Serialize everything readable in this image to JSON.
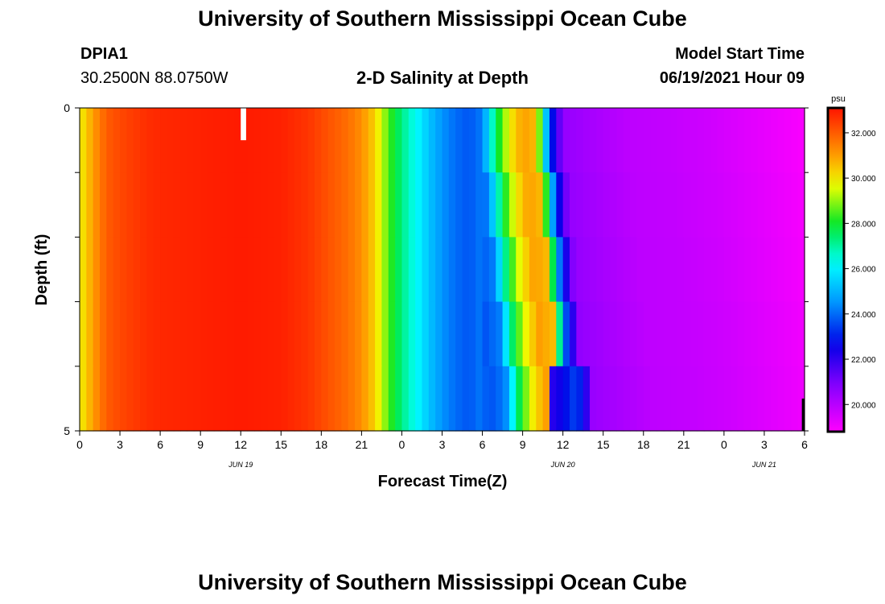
{
  "header": {
    "title": "University of Southern Mississippi Ocean Cube",
    "station_id": "DPIA1",
    "station_coords": "30.2500N  88.0750W",
    "chart_title": "2-D Salinity at Depth",
    "model_label": "Model Start Time",
    "model_time": "06/19/2021 Hour 09"
  },
  "footer": {
    "title": "University of Southern Mississippi Ocean Cube"
  },
  "chart_data": {
    "type": "heatmap",
    "title": "2-D Salinity at Depth",
    "xlabel": "Forecast Time(Z)",
    "ylabel": "Depth (ft)",
    "x_unit": "hours since 06/19 00Z",
    "xlim": [
      0,
      54
    ],
    "ylim": [
      0,
      5
    ],
    "x_ticks": [
      {
        "v": 0,
        "label": "0"
      },
      {
        "v": 3,
        "label": "3"
      },
      {
        "v": 6,
        "label": "6"
      },
      {
        "v": 9,
        "label": "9"
      },
      {
        "v": 12,
        "label": "12"
      },
      {
        "v": 15,
        "label": "15"
      },
      {
        "v": 18,
        "label": "18"
      },
      {
        "v": 21,
        "label": "21"
      },
      {
        "v": 24,
        "label": "0"
      },
      {
        "v": 27,
        "label": "3"
      },
      {
        "v": 30,
        "label": "6"
      },
      {
        "v": 33,
        "label": "9"
      },
      {
        "v": 36,
        "label": "12"
      },
      {
        "v": 39,
        "label": "15"
      },
      {
        "v": 42,
        "label": "18"
      },
      {
        "v": 45,
        "label": "21"
      },
      {
        "v": 48,
        "label": "0"
      },
      {
        "v": 51,
        "label": "3"
      },
      {
        "v": 54,
        "label": "6"
      }
    ],
    "date_labels": [
      {
        "v": 12,
        "label": "JUN 19"
      },
      {
        "v": 36,
        "label": "JUN 20"
      },
      {
        "v": 51,
        "label": "JUN 21"
      }
    ],
    "y_ticks": [
      {
        "v": 0,
        "label": "0"
      },
      {
        "v": 1,
        "label": ""
      },
      {
        "v": 2,
        "label": ""
      },
      {
        "v": 3,
        "label": ""
      },
      {
        "v": 4,
        "label": ""
      },
      {
        "v": 5,
        "label": "5"
      }
    ],
    "colorbar": {
      "unit": "psu",
      "min": 18.8,
      "max": 33.1,
      "ticks": [
        {
          "v": 32,
          "label": "32.000"
        },
        {
          "v": 30,
          "label": "30.000"
        },
        {
          "v": 28,
          "label": "28.000"
        },
        {
          "v": 26,
          "label": "26.000"
        },
        {
          "v": 24,
          "label": "24.000"
        },
        {
          "v": 22,
          "label": "22.000"
        },
        {
          "v": 20,
          "label": "20.000"
        }
      ]
    },
    "surface_profile": [
      {
        "t": 0,
        "s": 29.8
      },
      {
        "t": 1,
        "s": 31.0
      },
      {
        "t": 2,
        "s": 32.0
      },
      {
        "t": 3,
        "s": 32.3
      },
      {
        "t": 4,
        "s": 32.5
      },
      {
        "t": 5,
        "s": 32.7
      },
      {
        "t": 6,
        "s": 32.8
      },
      {
        "t": 9,
        "s": 32.9
      },
      {
        "t": 12,
        "s": 33.0
      },
      {
        "t": 15,
        "s": 32.9
      },
      {
        "t": 17,
        "s": 32.6
      },
      {
        "t": 18,
        "s": 32.3
      },
      {
        "t": 19,
        "s": 32.0
      },
      {
        "t": 20,
        "s": 31.7
      },
      {
        "t": 21,
        "s": 31.2
      },
      {
        "t": 22,
        "s": 30.3
      },
      {
        "t": 23,
        "s": 28.5
      },
      {
        "t": 24,
        "s": 27.2
      },
      {
        "t": 25,
        "s": 26.3
      },
      {
        "t": 26,
        "s": 25.3
      },
      {
        "t": 27,
        "s": 24.5
      },
      {
        "t": 28,
        "s": 24.0
      },
      {
        "t": 29,
        "s": 23.7
      },
      {
        "t": 30,
        "s": 24.2
      },
      {
        "t": 31,
        "s": 27.5
      },
      {
        "t": 32,
        "s": 29.8
      },
      {
        "t": 33,
        "s": 31.0
      },
      {
        "t": 34,
        "s": 30.6
      },
      {
        "t": 35,
        "s": 23.5
      },
      {
        "t": 36,
        "s": 20.6
      },
      {
        "t": 38,
        "s": 20.3
      },
      {
        "t": 41,
        "s": 19.9
      },
      {
        "t": 44,
        "s": 19.8
      },
      {
        "t": 47,
        "s": 19.6
      },
      {
        "t": 50,
        "s": 19.3
      },
      {
        "t": 52,
        "s": 19.1
      },
      {
        "t": 54,
        "s": 18.9
      }
    ],
    "front_shift_hours_per_ft": 0.42,
    "deep_layer_freshening": [
      {
        "t": 35,
        "s": 22.0
      },
      {
        "t": 36,
        "s": 22.6
      },
      {
        "t": 37,
        "s": 23.6
      },
      {
        "t": 38,
        "s": 21.5
      }
    ],
    "missing_data": [
      {
        "t0": 12.0,
        "t1": 12.4,
        "d0": 0,
        "d1": 0.5
      },
      {
        "t0": 53.8,
        "t1": 54,
        "d0": 4.5,
        "d1": 5
      }
    ]
  }
}
